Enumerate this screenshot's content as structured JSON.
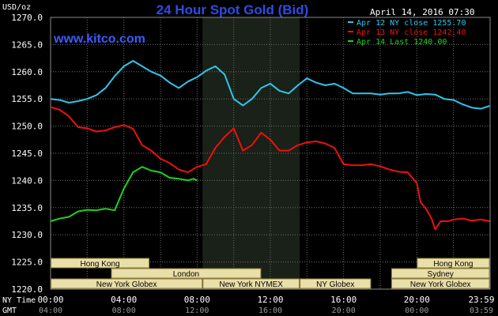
{
  "colors": {
    "background": "#000000",
    "grid": "#6e6e6e",
    "night_band": "#1a2118",
    "text": "#ffffff",
    "title": "#2d4ce8",
    "site": "#3b5bff",
    "session_box_fill": "#e9dfa8",
    "session_box_stroke": "#8a7a3a",
    "session_text": "#000000",
    "apr12": "#2ec6ee",
    "apr13": "#ee1010",
    "apr14": "#1ed21e"
  },
  "header": {
    "title": "24 Hour Spot Gold (Bid)",
    "date_time": "April 14, 2016 07:30",
    "site": "www.kitco.com"
  },
  "chart_data": {
    "type": "line",
    "title": "24 Hour Spot Gold (Bid)",
    "ylabel": "USD/oz",
    "ylim": [
      1220,
      1270
    ],
    "xlim": [
      0,
      24
    ],
    "grid": true,
    "legend": "top-right",
    "y_ticks": [
      "1270.0",
      "1265.0",
      "1260.0",
      "1255.0",
      "1250.0",
      "1245.0",
      "1240.0",
      "1235.0",
      "1230.0",
      "1225.0",
      "1220.0"
    ],
    "x_row_labels": {
      "ny": "NY Time",
      "gmt": "GMT"
    },
    "x_ticks_ny": [
      "00:00",
      "04:00",
      "08:00",
      "12:00",
      "16:00",
      "20:00",
      "23:59"
    ],
    "x_ticks_gmt": [
      "04:00",
      "08:00",
      "12:00",
      "16:00",
      "20:00",
      "00:00",
      "03:59"
    ],
    "shaded_band_hours": [
      8.3,
      13.6
    ],
    "series": [
      {
        "name": "Apr 12 NY close 1255.70",
        "color": "#2ec6ee",
        "points": [
          [
            0,
            1255.0
          ],
          [
            0.5,
            1254.8
          ],
          [
            1,
            1254.3
          ],
          [
            1.5,
            1254.6
          ],
          [
            2,
            1255.0
          ],
          [
            2.5,
            1255.7
          ],
          [
            3,
            1257.0
          ],
          [
            3.5,
            1259.2
          ],
          [
            4,
            1261.0
          ],
          [
            4.5,
            1262.0
          ],
          [
            5,
            1261.0
          ],
          [
            5.5,
            1260.0
          ],
          [
            6,
            1259.3
          ],
          [
            6.5,
            1258.0
          ],
          [
            7,
            1257.0
          ],
          [
            7.5,
            1258.2
          ],
          [
            8,
            1259.0
          ],
          [
            8.5,
            1260.2
          ],
          [
            9,
            1261.0
          ],
          [
            9.5,
            1259.5
          ],
          [
            10,
            1255.0
          ],
          [
            10.5,
            1253.8
          ],
          [
            11,
            1255.0
          ],
          [
            11.5,
            1257.0
          ],
          [
            12,
            1257.8
          ],
          [
            12.5,
            1256.5
          ],
          [
            13,
            1256.0
          ],
          [
            13.5,
            1257.5
          ],
          [
            14,
            1258.8
          ],
          [
            14.5,
            1258.0
          ],
          [
            15,
            1257.5
          ],
          [
            15.5,
            1257.8
          ],
          [
            16,
            1257.0
          ],
          [
            16.5,
            1256.0
          ],
          [
            17,
            1256.0
          ],
          [
            17.5,
            1256.0
          ],
          [
            18,
            1255.8
          ],
          [
            18.5,
            1256.0
          ],
          [
            19,
            1256.0
          ],
          [
            19.5,
            1256.3
          ],
          [
            20,
            1255.7
          ],
          [
            20.5,
            1255.9
          ],
          [
            21,
            1255.8
          ],
          [
            21.5,
            1255.0
          ],
          [
            22,
            1254.8
          ],
          [
            22.5,
            1254.0
          ],
          [
            23,
            1253.4
          ],
          [
            23.5,
            1253.2
          ],
          [
            23.98,
            1253.7
          ]
        ]
      },
      {
        "name": "Apr 13 NY close 1242.40",
        "color": "#ee1010",
        "points": [
          [
            0,
            1253.5
          ],
          [
            0.5,
            1253.0
          ],
          [
            1,
            1251.8
          ],
          [
            1.5,
            1249.8
          ],
          [
            2,
            1249.6
          ],
          [
            2.5,
            1249.0
          ],
          [
            3,
            1249.2
          ],
          [
            3.5,
            1249.8
          ],
          [
            4,
            1250.2
          ],
          [
            4.5,
            1249.5
          ],
          [
            5,
            1246.5
          ],
          [
            5.5,
            1245.5
          ],
          [
            6,
            1244.0
          ],
          [
            6.5,
            1243.2
          ],
          [
            7,
            1242.0
          ],
          [
            7.5,
            1241.5
          ],
          [
            8,
            1242.5
          ],
          [
            8.5,
            1243.0
          ],
          [
            9,
            1246.0
          ],
          [
            9.5,
            1248.0
          ],
          [
            10,
            1249.6
          ],
          [
            10.5,
            1245.5
          ],
          [
            11,
            1246.5
          ],
          [
            11.5,
            1248.8
          ],
          [
            12,
            1247.5
          ],
          [
            12.5,
            1245.5
          ],
          [
            13,
            1245.5
          ],
          [
            13.5,
            1246.5
          ],
          [
            14,
            1247.0
          ],
          [
            14.5,
            1247.2
          ],
          [
            15,
            1246.8
          ],
          [
            15.5,
            1246.0
          ],
          [
            16,
            1243.0
          ],
          [
            16.5,
            1242.8
          ],
          [
            17,
            1242.8
          ],
          [
            17.5,
            1243.0
          ],
          [
            18,
            1242.6
          ],
          [
            18.5,
            1242.0
          ],
          [
            19,
            1241.6
          ],
          [
            19.5,
            1241.5
          ],
          [
            20,
            1239.5
          ],
          [
            20.2,
            1236.0
          ],
          [
            20.5,
            1234.8
          ],
          [
            20.8,
            1233.0
          ],
          [
            21,
            1231.0
          ],
          [
            21.3,
            1232.5
          ],
          [
            21.7,
            1232.5
          ],
          [
            22,
            1232.8
          ],
          [
            22.5,
            1233.0
          ],
          [
            23,
            1232.6
          ],
          [
            23.5,
            1232.8
          ],
          [
            23.98,
            1232.5
          ]
        ]
      },
      {
        "name": "Apr 14 Last 1240.00",
        "color": "#1ed21e",
        "points": [
          [
            0,
            1232.5
          ],
          [
            0.5,
            1233.0
          ],
          [
            1,
            1233.3
          ],
          [
            1.5,
            1234.3
          ],
          [
            2,
            1234.6
          ],
          [
            2.5,
            1234.5
          ],
          [
            3,
            1234.8
          ],
          [
            3.5,
            1234.5
          ],
          [
            4,
            1238.5
          ],
          [
            4.5,
            1241.5
          ],
          [
            5,
            1242.5
          ],
          [
            5.5,
            1241.8
          ],
          [
            6,
            1241.5
          ],
          [
            6.5,
            1240.5
          ],
          [
            7,
            1240.3
          ],
          [
            7.5,
            1240.0
          ],
          [
            7.8,
            1240.3
          ],
          [
            8,
            1240.0
          ]
        ]
      }
    ],
    "sessions": [
      {
        "label": "Hong Kong",
        "row": 0,
        "start": 0,
        "end": 5.4
      },
      {
        "label": "London",
        "row": 1,
        "start": 3.3,
        "end": 11.5
      },
      {
        "label": "New York Globex",
        "row": 2,
        "start": 0,
        "end": 8.3
      },
      {
        "label": "New York NYMEX",
        "row": 2,
        "start": 8.3,
        "end": 13.6
      },
      {
        "label": "NY Globex",
        "row": 2,
        "start": 13.6,
        "end": 17.5
      },
      {
        "label": "Sydney",
        "row": 1,
        "start": 18.6,
        "end": 23.98
      },
      {
        "label": "Hong Kong",
        "row": 0,
        "start": 20.0,
        "end": 23.98
      },
      {
        "label": "New York Globex",
        "row": 2,
        "start": 18.6,
        "end": 23.98
      }
    ]
  }
}
